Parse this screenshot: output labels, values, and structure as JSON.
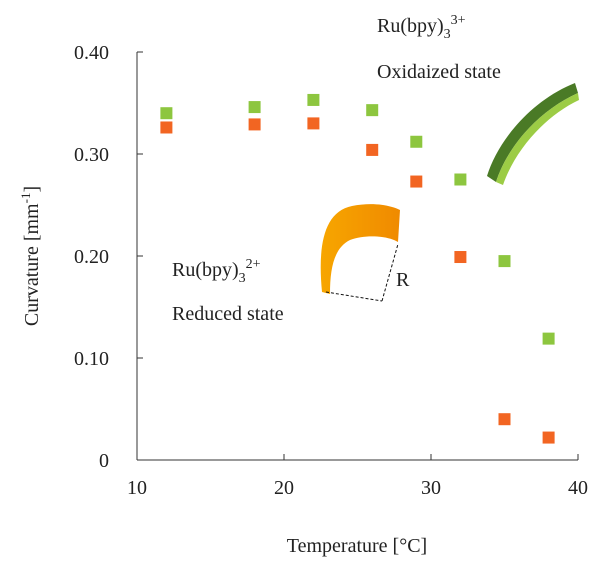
{
  "chart_data": {
    "type": "scatter",
    "x_label": "Temperature [°C]",
    "y_label": {
      "main": "Curvature [mm",
      "sup": "-1",
      "end": "]"
    },
    "xlim": [
      10,
      40
    ],
    "xticks": [
      10,
      20,
      30,
      40
    ],
    "ylim": [
      0,
      0.4
    ],
    "yticks": [
      0,
      {
        "value": 0.1,
        "label": "0.10"
      },
      {
        "value": 0.2,
        "label": "0.20"
      },
      {
        "value": 0.3,
        "label": "0.30"
      },
      {
        "value": 0.4,
        "label": "0.40"
      }
    ],
    "series": [
      {
        "color": "#8dc63f",
        "x": [
          12,
          18,
          22,
          26,
          29,
          32,
          35,
          38
        ],
        "values": [
          0.34,
          0.346,
          0.353,
          0.343,
          0.312,
          0.275,
          0.195,
          0.119
        ]
      },
      {
        "color": "#f26522",
        "x": [
          12,
          18,
          22,
          26,
          29,
          32,
          35,
          38
        ],
        "values": [
          0.326,
          0.329,
          0.33,
          0.304,
          0.273,
          0.199,
          0.04,
          0.022
        ]
      }
    ],
    "annotations": {
      "oxidized": {
        "base": "Ru(bpy)",
        "sub": "3",
        "sup": "3+",
        "state": "Oxidaized state"
      },
      "reduced": {
        "base": "Ru(bpy)",
        "sub": "3",
        "sup": "2+",
        "state": "Reduced state"
      },
      "radius": "R"
    }
  }
}
